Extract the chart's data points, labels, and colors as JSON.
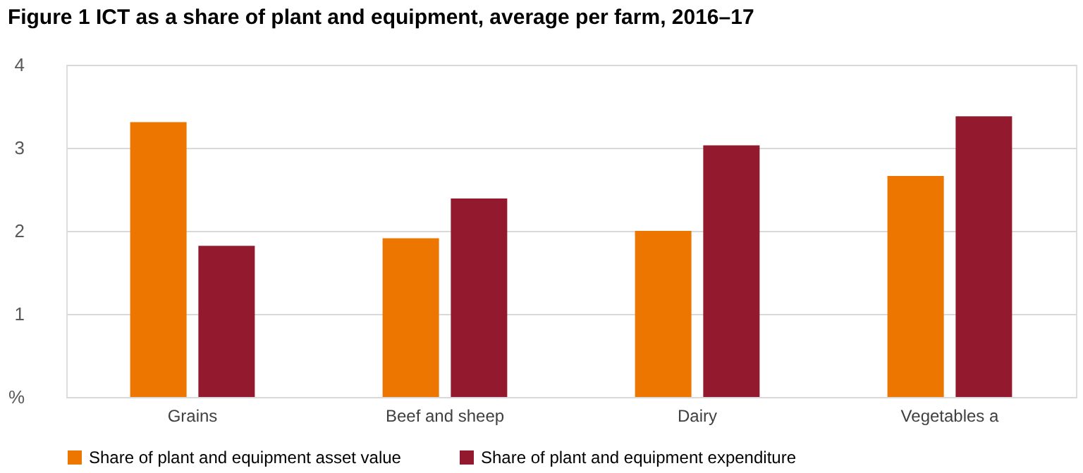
{
  "chart_data": {
    "type": "bar",
    "title": "Figure 1 ICT as a share of plant and equipment, average per farm, 2016–17",
    "categories": [
      "Grains",
      "Beef and sheep",
      "Dairy",
      "Vegetables a"
    ],
    "series": [
      {
        "name": "Share of plant and equipment asset value",
        "color": "#ed7600",
        "values": [
          3.31,
          1.91,
          2.0,
          2.66
        ]
      },
      {
        "name": "Share of plant and equipment expenditure",
        "color": "#931a2e",
        "values": [
          1.82,
          2.39,
          3.03,
          3.38
        ]
      }
    ],
    "ylim": [
      0,
      4
    ],
    "yticks": [
      {
        "value": 0,
        "label": "%"
      },
      1,
      2,
      3,
      4
    ],
    "grid": "y",
    "legend": "bottom"
  }
}
